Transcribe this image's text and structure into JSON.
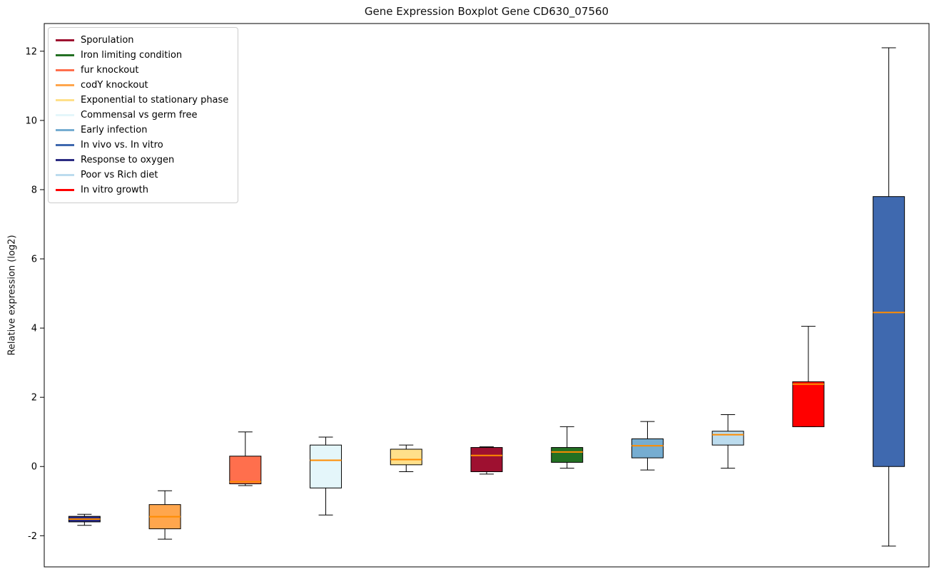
{
  "chart_data": {
    "type": "boxplot",
    "title": "Gene Expression Boxplot Gene CD630_07560",
    "ylabel": "Relative expression (log2)",
    "xlabel": "",
    "ylim": [
      -2.9,
      12.8
    ],
    "yticks": [
      -2,
      0,
      2,
      4,
      6,
      8,
      10,
      12
    ],
    "grid": false,
    "legend_position": "upper left",
    "median_color": "#ff8c00",
    "legend_order": [
      "Sporulation",
      "Iron limiting condition",
      "fur knockout",
      "codY knockout",
      "Exponential to stationary phase",
      "Commensal vs germ free",
      "Early infection",
      "In vivo vs. In vitro",
      "Response to oxygen",
      "Poor vs Rich diet",
      "In vitro growth"
    ],
    "boxes": [
      {
        "name": "Response to oxygen",
        "color": "#2b2b82",
        "whisker_low": -1.7,
        "q1": -1.6,
        "median": -1.52,
        "q3": -1.44,
        "whisker_high": -1.38
      },
      {
        "name": "codY knockout",
        "color": "#ffa64d",
        "whisker_low": -2.1,
        "q1": -1.8,
        "median": -1.45,
        "q3": -1.1,
        "whisker_high": -0.7
      },
      {
        "name": "fur knockout",
        "color": "#ff6f4d",
        "whisker_low": -0.55,
        "q1": -0.5,
        "median": -0.44,
        "q3": 0.3,
        "whisker_high": 1.0
      },
      {
        "name": "Commensal vs germ free",
        "color": "#e4f6fa",
        "whisker_low": -1.4,
        "q1": -0.62,
        "median": 0.18,
        "q3": 0.62,
        "whisker_high": 0.85
      },
      {
        "name": "Exponential to stationary phase",
        "color": "#ffe08a",
        "whisker_low": -0.15,
        "q1": 0.05,
        "median": 0.2,
        "q3": 0.5,
        "whisker_high": 0.62
      },
      {
        "name": "Sporulation",
        "color": "#9e1030",
        "whisker_low": -0.22,
        "q1": -0.15,
        "median": 0.32,
        "q3": 0.55,
        "whisker_high": 0.57
      },
      {
        "name": "Iron limiting condition",
        "color": "#237023",
        "whisker_low": -0.05,
        "q1": 0.12,
        "median": 0.42,
        "q3": 0.55,
        "whisker_high": 1.15
      },
      {
        "name": "Early infection",
        "color": "#76add1",
        "whisker_low": -0.1,
        "q1": 0.25,
        "median": 0.6,
        "q3": 0.8,
        "whisker_high": 1.3
      },
      {
        "name": "Poor vs Rich diet",
        "color": "#bcdcee",
        "whisker_low": -0.05,
        "q1": 0.62,
        "median": 0.92,
        "q3": 1.02,
        "whisker_high": 1.5
      },
      {
        "name": "In vitro growth",
        "color": "#ff0000",
        "whisker_low": 1.15,
        "q1": 1.15,
        "median": 2.38,
        "q3": 2.45,
        "whisker_high": 4.05
      },
      {
        "name": "In vivo vs. In vitro",
        "color": "#3f69af",
        "whisker_low": -2.3,
        "q1": 0.0,
        "median": 4.45,
        "q3": 7.8,
        "whisker_high": 12.1
      }
    ]
  }
}
